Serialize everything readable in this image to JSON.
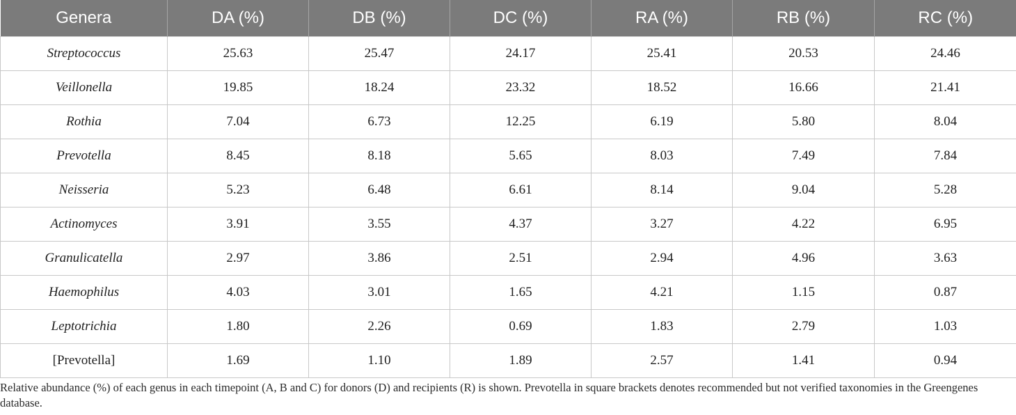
{
  "table": {
    "headers": [
      "Genera",
      "DA (%)",
      "DB (%)",
      "DC (%)",
      "RA (%)",
      "RB (%)",
      "RC (%)"
    ],
    "rows": [
      {
        "genus": "Streptococcus",
        "italic": true,
        "values": [
          "25.63",
          "25.47",
          "24.17",
          "25.41",
          "20.53",
          "24.46"
        ]
      },
      {
        "genus": "Veillonella",
        "italic": true,
        "values": [
          "19.85",
          "18.24",
          "23.32",
          "18.52",
          "16.66",
          "21.41"
        ]
      },
      {
        "genus": "Rothia",
        "italic": true,
        "values": [
          "7.04",
          "6.73",
          "12.25",
          "6.19",
          "5.80",
          "8.04"
        ]
      },
      {
        "genus": "Prevotella",
        "italic": true,
        "values": [
          "8.45",
          "8.18",
          "5.65",
          "8.03",
          "7.49",
          "7.84"
        ]
      },
      {
        "genus": "Neisseria",
        "italic": true,
        "values": [
          "5.23",
          "6.48",
          "6.61",
          "8.14",
          "9.04",
          "5.28"
        ]
      },
      {
        "genus": "Actinomyces",
        "italic": true,
        "values": [
          "3.91",
          "3.55",
          "4.37",
          "3.27",
          "4.22",
          "6.95"
        ]
      },
      {
        "genus": "Granulicatella",
        "italic": true,
        "values": [
          "2.97",
          "3.86",
          "2.51",
          "2.94",
          "4.96",
          "3.63"
        ]
      },
      {
        "genus": "Haemophilus",
        "italic": true,
        "values": [
          "4.03",
          "3.01",
          "1.65",
          "4.21",
          "1.15",
          "0.87"
        ]
      },
      {
        "genus": "Leptotrichia",
        "italic": true,
        "values": [
          "1.80",
          "2.26",
          "0.69",
          "1.83",
          "2.79",
          "1.03"
        ]
      },
      {
        "genus": "[Prevotella]",
        "italic": false,
        "values": [
          "1.69",
          "1.10",
          "1.89",
          "2.57",
          "1.41",
          "0.94"
        ]
      }
    ]
  },
  "footnote": "Relative abundance (%) of each genus in each timepoint (A, B and C) for donors (D) and recipients (R) is shown. Prevotella in square brackets denotes recommended but not verified taxonomies in the Greengenes database.",
  "colors": {
    "header_bg": "#7b7b7b",
    "header_text": "#ffffff",
    "grid": "#c8c8c8"
  }
}
